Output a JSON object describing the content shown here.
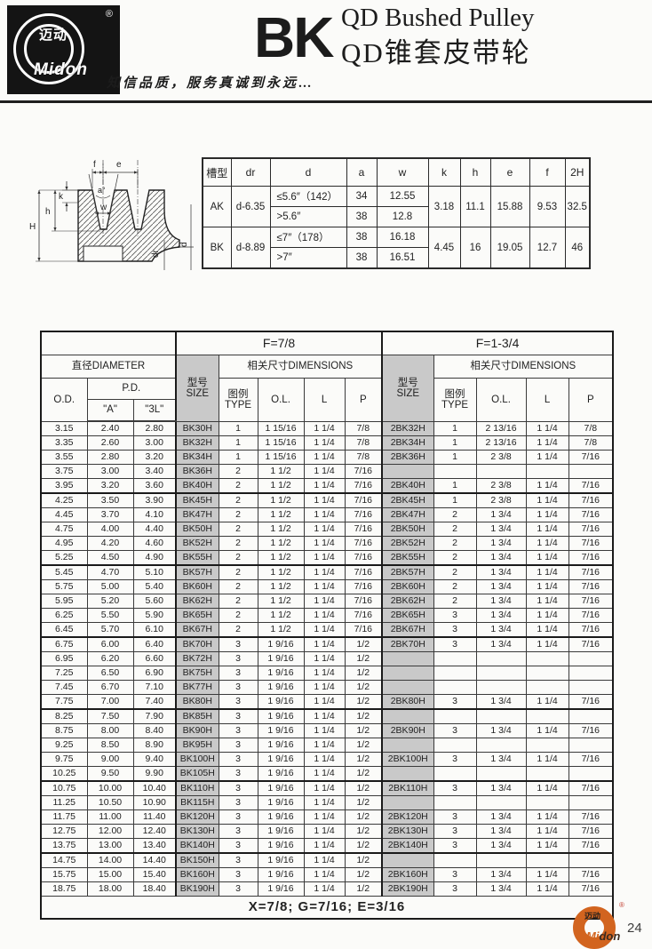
{
  "header": {
    "logo": {
      "brand_cn": "迈动",
      "brand_en": "Midon",
      "registered": "®"
    },
    "series": "BK",
    "title_en": "QD Bushed Pulley",
    "title_cn": "QD锥套皮带轮",
    "tagline": "知信品质，服务真诚到永远…"
  },
  "drawing": {
    "labels": {
      "f": "f",
      "e": "e",
      "angle": "a°",
      "w": "w",
      "k": "k",
      "h": "h",
      "H": "H",
      "dr": "dr",
      "d": "d"
    }
  },
  "spec_table": {
    "headers": [
      "槽型",
      "dr",
      "d",
      "a",
      "w",
      "k",
      "h",
      "e",
      "f",
      "2H"
    ],
    "rows": [
      {
        "groove": "AK",
        "dr": "d-6.35",
        "d_le": "≤5.6″（142）",
        "a_le": "34",
        "w_le": "12.55",
        "d_gt": ">5.6″",
        "a_gt": "38",
        "w_gt": "12.8",
        "k": "3.18",
        "h": "11.1",
        "e": "15.88",
        "f": "9.53",
        "hh": "32.5"
      },
      {
        "groove": "BK",
        "dr": "d-8.89",
        "d_le": "≤7″（178）",
        "a_le": "38",
        "w_le": "16.18",
        "d_gt": ">7″",
        "a_gt": "38",
        "w_gt": "16.51",
        "k": "4.45",
        "h": "16",
        "e": "19.05",
        "f": "12.7",
        "hh": "46"
      }
    ]
  },
  "main_table": {
    "section_left": "F=7/8",
    "section_right": "F=1-3/4",
    "diameter_label": "直径DIAMETER",
    "od_label": "O.D.",
    "pd_label": "P.D.",
    "a_label": "\"A\"",
    "l3_label": "\"3L\"",
    "size_label_cn": "型号",
    "size_label_en": "SIZE",
    "dims_label": "相关尺寸DIMENSIONS",
    "type_label_cn": "图例",
    "type_label_en": "TYPE",
    "ol_label": "O.L.",
    "l_label": "L",
    "p_label": "P",
    "group_breaks": [
      4,
      9,
      14,
      19,
      24,
      29
    ],
    "rows": [
      {
        "od": "3.15",
        "a": "2.40",
        "l3": "2.80",
        "s1": "BK30H",
        "t1": "1",
        "ol1": "1 15/16",
        "l1": "1 1/4",
        "p1": "7/8",
        "s2": "2BK32H",
        "t2": "1",
        "ol2": "2 13/16",
        "l2": "1 1/4",
        "p2": "7/8"
      },
      {
        "od": "3.35",
        "a": "2.60",
        "l3": "3.00",
        "s1": "BK32H",
        "t1": "1",
        "ol1": "1 15/16",
        "l1": "1 1/4",
        "p1": "7/8",
        "s2": "2BK34H",
        "t2": "1",
        "ol2": "2 13/16",
        "l2": "1 1/4",
        "p2": "7/8"
      },
      {
        "od": "3.55",
        "a": "2.80",
        "l3": "3.20",
        "s1": "BK34H",
        "t1": "1",
        "ol1": "1 15/16",
        "l1": "1 1/4",
        "p1": "7/8",
        "s2": "2BK36H",
        "t2": "1",
        "ol2": "2 3/8",
        "l2": "1 1/4",
        "p2": "7/16"
      },
      {
        "od": "3.75",
        "a": "3.00",
        "l3": "3.40",
        "s1": "BK36H",
        "t1": "2",
        "ol1": "1 1/2",
        "l1": "1 1/4",
        "p1": "7/16",
        "s2": "",
        "t2": "",
        "ol2": "",
        "l2": "",
        "p2": ""
      },
      {
        "od": "3.95",
        "a": "3.20",
        "l3": "3.60",
        "s1": "BK40H",
        "t1": "2",
        "ol1": "1 1/2",
        "l1": "1 1/4",
        "p1": "7/16",
        "s2": "2BK40H",
        "t2": "1",
        "ol2": "2 3/8",
        "l2": "1 1/4",
        "p2": "7/16"
      },
      {
        "od": "4.25",
        "a": "3.50",
        "l3": "3.90",
        "s1": "BK45H",
        "t1": "2",
        "ol1": "1 1/2",
        "l1": "1 1/4",
        "p1": "7/16",
        "s2": "2BK45H",
        "t2": "1",
        "ol2": "2 3/8",
        "l2": "1 1/4",
        "p2": "7/16"
      },
      {
        "od": "4.45",
        "a": "3.70",
        "l3": "4.10",
        "s1": "BK47H",
        "t1": "2",
        "ol1": "1 1/2",
        "l1": "1 1/4",
        "p1": "7/16",
        "s2": "2BK47H",
        "t2": "2",
        "ol2": "1 3/4",
        "l2": "1 1/4",
        "p2": "7/16"
      },
      {
        "od": "4.75",
        "a": "4.00",
        "l3": "4.40",
        "s1": "BK50H",
        "t1": "2",
        "ol1": "1 1/2",
        "l1": "1 1/4",
        "p1": "7/16",
        "s2": "2BK50H",
        "t2": "2",
        "ol2": "1 3/4",
        "l2": "1 1/4",
        "p2": "7/16"
      },
      {
        "od": "4.95",
        "a": "4.20",
        "l3": "4.60",
        "s1": "BK52H",
        "t1": "2",
        "ol1": "1 1/2",
        "l1": "1 1/4",
        "p1": "7/16",
        "s2": "2BK52H",
        "t2": "2",
        "ol2": "1 3/4",
        "l2": "1 1/4",
        "p2": "7/16"
      },
      {
        "od": "5.25",
        "a": "4.50",
        "l3": "4.90",
        "s1": "BK55H",
        "t1": "2",
        "ol1": "1 1/2",
        "l1": "1 1/4",
        "p1": "7/16",
        "s2": "2BK55H",
        "t2": "2",
        "ol2": "1 3/4",
        "l2": "1 1/4",
        "p2": "7/16"
      },
      {
        "od": "5.45",
        "a": "4.70",
        "l3": "5.10",
        "s1": "BK57H",
        "t1": "2",
        "ol1": "1 1/2",
        "l1": "1 1/4",
        "p1": "7/16",
        "s2": "2BK57H",
        "t2": "2",
        "ol2": "1 3/4",
        "l2": "1 1/4",
        "p2": "7/16"
      },
      {
        "od": "5.75",
        "a": "5.00",
        "l3": "5.40",
        "s1": "BK60H",
        "t1": "2",
        "ol1": "1 1/2",
        "l1": "1 1/4",
        "p1": "7/16",
        "s2": "2BK60H",
        "t2": "2",
        "ol2": "1 3/4",
        "l2": "1 1/4",
        "p2": "7/16"
      },
      {
        "od": "5.95",
        "a": "5.20",
        "l3": "5.60",
        "s1": "BK62H",
        "t1": "2",
        "ol1": "1 1/2",
        "l1": "1 1/4",
        "p1": "7/16",
        "s2": "2BK62H",
        "t2": "2",
        "ol2": "1 3/4",
        "l2": "1 1/4",
        "p2": "7/16"
      },
      {
        "od": "6.25",
        "a": "5.50",
        "l3": "5.90",
        "s1": "BK65H",
        "t1": "2",
        "ol1": "1 1/2",
        "l1": "1 1/4",
        "p1": "7/16",
        "s2": "2BK65H",
        "t2": "3",
        "ol2": "1 3/4",
        "l2": "1 1/4",
        "p2": "7/16"
      },
      {
        "od": "6.45",
        "a": "5.70",
        "l3": "6.10",
        "s1": "BK67H",
        "t1": "2",
        "ol1": "1 1/2",
        "l1": "1 1/4",
        "p1": "7/16",
        "s2": "2BK67H",
        "t2": "3",
        "ol2": "1 3/4",
        "l2": "1 1/4",
        "p2": "7/16"
      },
      {
        "od": "6.75",
        "a": "6.00",
        "l3": "6.40",
        "s1": "BK70H",
        "t1": "3",
        "ol1": "1 9/16",
        "l1": "1 1/4",
        "p1": "1/2",
        "s2": "2BK70H",
        "t2": "3",
        "ol2": "1 3/4",
        "l2": "1 1/4",
        "p2": "7/16"
      },
      {
        "od": "6.95",
        "a": "6.20",
        "l3": "6.60",
        "s1": "BK72H",
        "t1": "3",
        "ol1": "1 9/16",
        "l1": "1 1/4",
        "p1": "1/2",
        "s2": "",
        "t2": "",
        "ol2": "",
        "l2": "",
        "p2": ""
      },
      {
        "od": "7.25",
        "a": "6.50",
        "l3": "6.90",
        "s1": "BK75H",
        "t1": "3",
        "ol1": "1 9/16",
        "l1": "1 1/4",
        "p1": "1/2",
        "s2": "",
        "t2": "",
        "ol2": "",
        "l2": "",
        "p2": ""
      },
      {
        "od": "7.45",
        "a": "6.70",
        "l3": "7.10",
        "s1": "BK77H",
        "t1": "3",
        "ol1": "1 9/16",
        "l1": "1 1/4",
        "p1": "1/2",
        "s2": "",
        "t2": "",
        "ol2": "",
        "l2": "",
        "p2": ""
      },
      {
        "od": "7.75",
        "a": "7.00",
        "l3": "7.40",
        "s1": "BK80H",
        "t1": "3",
        "ol1": "1 9/16",
        "l1": "1 1/4",
        "p1": "1/2",
        "s2": "2BK80H",
        "t2": "3",
        "ol2": "1 3/4",
        "l2": "1 1/4",
        "p2": "7/16"
      },
      {
        "od": "8.25",
        "a": "7.50",
        "l3": "7.90",
        "s1": "BK85H",
        "t1": "3",
        "ol1": "1 9/16",
        "l1": "1 1/4",
        "p1": "1/2",
        "s2": "",
        "t2": "",
        "ol2": "",
        "l2": "",
        "p2": ""
      },
      {
        "od": "8.75",
        "a": "8.00",
        "l3": "8.40",
        "s1": "BK90H",
        "t1": "3",
        "ol1": "1 9/16",
        "l1": "1 1/4",
        "p1": "1/2",
        "s2": "2BK90H",
        "t2": "3",
        "ol2": "1 3/4",
        "l2": "1 1/4",
        "p2": "7/16"
      },
      {
        "od": "9.25",
        "a": "8.50",
        "l3": "8.90",
        "s1": "BK95H",
        "t1": "3",
        "ol1": "1 9/16",
        "l1": "1 1/4",
        "p1": "1/2",
        "s2": "",
        "t2": "",
        "ol2": "",
        "l2": "",
        "p2": ""
      },
      {
        "od": "9.75",
        "a": "9.00",
        "l3": "9.40",
        "s1": "BK100H",
        "t1": "3",
        "ol1": "1 9/16",
        "l1": "1 1/4",
        "p1": "1/2",
        "s2": "2BK100H",
        "t2": "3",
        "ol2": "1 3/4",
        "l2": "1 1/4",
        "p2": "7/16"
      },
      {
        "od": "10.25",
        "a": "9.50",
        "l3": "9.90",
        "s1": "BK105H",
        "t1": "3",
        "ol1": "1 9/16",
        "l1": "1 1/4",
        "p1": "1/2",
        "s2": "",
        "t2": "",
        "ol2": "",
        "l2": "",
        "p2": ""
      },
      {
        "od": "10.75",
        "a": "10.00",
        "l3": "10.40",
        "s1": "BK110H",
        "t1": "3",
        "ol1": "1 9/16",
        "l1": "1 1/4",
        "p1": "1/2",
        "s2": "2BK110H",
        "t2": "3",
        "ol2": "1 3/4",
        "l2": "1 1/4",
        "p2": "7/16"
      },
      {
        "od": "11.25",
        "a": "10.50",
        "l3": "10.90",
        "s1": "BK115H",
        "t1": "3",
        "ol1": "1 9/16",
        "l1": "1 1/4",
        "p1": "1/2",
        "s2": "",
        "t2": "",
        "ol2": "",
        "l2": "",
        "p2": ""
      },
      {
        "od": "11.75",
        "a": "11.00",
        "l3": "11.40",
        "s1": "BK120H",
        "t1": "3",
        "ol1": "1 9/16",
        "l1": "1 1/4",
        "p1": "1/2",
        "s2": "2BK120H",
        "t2": "3",
        "ol2": "1 3/4",
        "l2": "1 1/4",
        "p2": "7/16"
      },
      {
        "od": "12.75",
        "a": "12.00",
        "l3": "12.40",
        "s1": "BK130H",
        "t1": "3",
        "ol1": "1 9/16",
        "l1": "1 1/4",
        "p1": "1/2",
        "s2": "2BK130H",
        "t2": "3",
        "ol2": "1 3/4",
        "l2": "1 1/4",
        "p2": "7/16"
      },
      {
        "od": "13.75",
        "a": "13.00",
        "l3": "13.40",
        "s1": "BK140H",
        "t1": "3",
        "ol1": "1 9/16",
        "l1": "1 1/4",
        "p1": "1/2",
        "s2": "2BK140H",
        "t2": "3",
        "ol2": "1 3/4",
        "l2": "1 1/4",
        "p2": "7/16"
      },
      {
        "od": "14.75",
        "a": "14.00",
        "l3": "14.40",
        "s1": "BK150H",
        "t1": "3",
        "ol1": "1 9/16",
        "l1": "1 1/4",
        "p1": "1/2",
        "s2": "",
        "t2": "",
        "ol2": "",
        "l2": "",
        "p2": ""
      },
      {
        "od": "15.75",
        "a": "15.00",
        "l3": "15.40",
        "s1": "BK160H",
        "t1": "3",
        "ol1": "1 9/16",
        "l1": "1 1/4",
        "p1": "1/2",
        "s2": "2BK160H",
        "t2": "3",
        "ol2": "1 3/4",
        "l2": "1 1/4",
        "p2": "7/16"
      },
      {
        "od": "18.75",
        "a": "18.00",
        "l3": "18.40",
        "s1": "BK190H",
        "t1": "3",
        "ol1": "1 9/16",
        "l1": "1 1/4",
        "p1": "1/2",
        "s2": "2BK190H",
        "t2": "3",
        "ol2": "1 3/4",
        "l2": "1 1/4",
        "p2": "7/16"
      }
    ],
    "footnote": "X=7/8;  G=7/16;  E=3/16"
  },
  "footer": {
    "logo_cn": "迈动",
    "brand_mi": "Mi",
    "brand_don": "don",
    "registered": "®",
    "page": "24"
  },
  "colors": {
    "accent_orange": "#d2641f",
    "shade_gray": "#c9c9c9",
    "ink": "#1c1c1c"
  }
}
